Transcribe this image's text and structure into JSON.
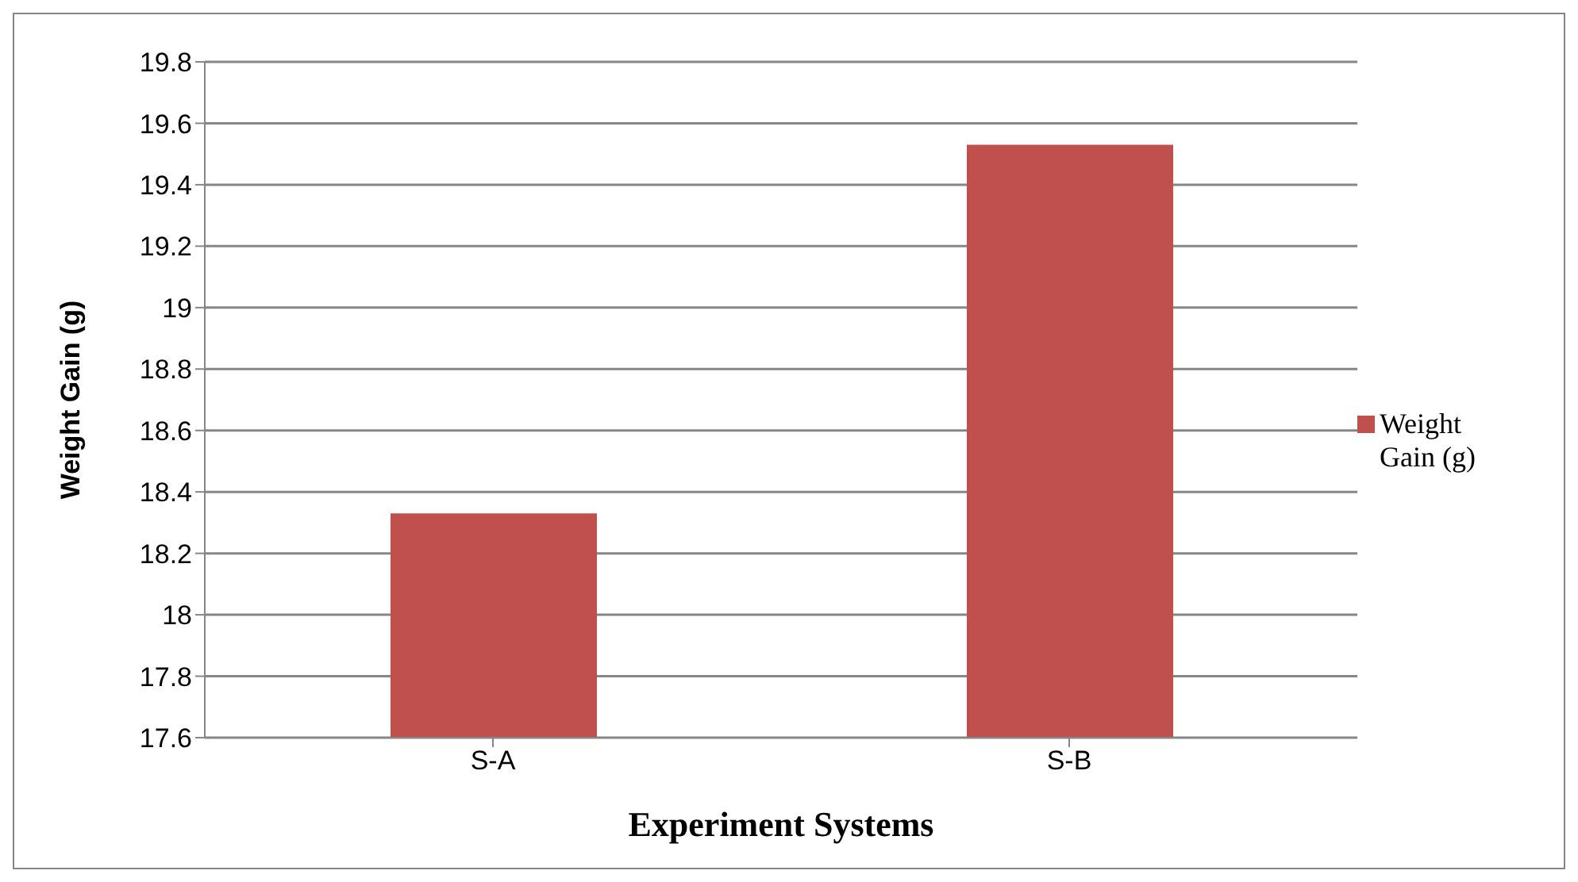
{
  "chart_data": {
    "type": "bar",
    "xlabel": "Experiment Systems",
    "ylabel": "Weight Gain (g)",
    "categories": [
      "S-A",
      "S-B"
    ],
    "series": [
      {
        "name": "Weight Gain (g)",
        "color": "#c0504d",
        "values": [
          18.33,
          19.53
        ]
      }
    ],
    "ylim": [
      17.6,
      19.8
    ],
    "yticks": [
      17.6,
      17.8,
      {
        "value": 18,
        "label": "18"
      },
      18.2,
      18.4,
      18.6,
      18.8,
      {
        "value": 19,
        "label": "19"
      },
      19.2,
      19.4,
      19.6,
      19.8
    ],
    "grid": "y",
    "legend": "right"
  }
}
